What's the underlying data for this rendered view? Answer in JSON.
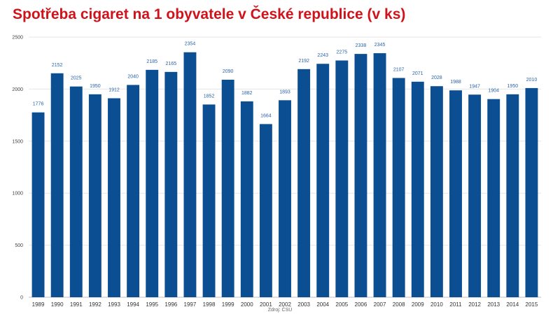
{
  "title": "Spotřeba cigaret na 1 obyvatele v České republice (v ks)",
  "source_note": "Zdroj: ČSÚ",
  "colors": {
    "title": "#d0121b",
    "bar": "#0b4f92",
    "data_label": "#2a62a8",
    "axis_text": "#444444",
    "grid": "#e6e6e6"
  },
  "chart_data": {
    "type": "bar",
    "title": "Spotřeba cigaret na 1 obyvatele v České republice (v ks)",
    "xlabel": "",
    "ylabel": "",
    "ylim": [
      0,
      2500
    ],
    "yticks": [
      0,
      500,
      1000,
      1500,
      2000,
      2500
    ],
    "grid": true,
    "legend": "none",
    "categories": [
      "1989",
      "1990",
      "1991",
      "1992",
      "1993",
      "1994",
      "1995",
      "1996",
      "1997",
      "1998",
      "1999",
      "2000",
      "2001",
      "2002",
      "2003",
      "2004",
      "2005",
      "2006",
      "2007",
      "2008",
      "2009",
      "2010",
      "2011",
      "2012",
      "2013",
      "2014",
      "2015"
    ],
    "values": [
      1776,
      2152,
      2025,
      1950,
      1912,
      2040,
      2185,
      2165,
      2354,
      1852,
      2090,
      1882,
      1664,
      1893,
      2192,
      2243,
      2275,
      2338,
      2345,
      2107,
      2071,
      2028,
      1988,
      1947,
      1904,
      1950,
      2010
    ]
  }
}
